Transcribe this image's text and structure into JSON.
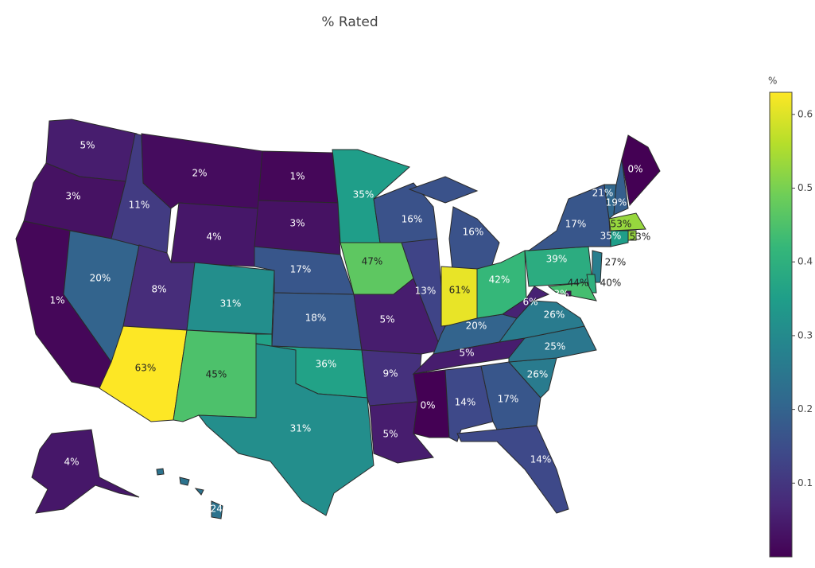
{
  "chart_data": {
    "type": "choropleth",
    "title": "% Rated",
    "colorscale": "Viridis",
    "colorbar_title": "%",
    "colorlim": [
      0,
      0.63
    ],
    "colorticks": [
      0.1,
      0.2,
      0.3,
      0.4,
      0.5,
      0.6
    ],
    "values": [
      0.05,
      0.03,
      0.01,
      0.2,
      0.11,
      0.02,
      0.04,
      0.08,
      0.63,
      0.31,
      0.45,
      0.01,
      0.03,
      0.17,
      0.18,
      0.36,
      0.31,
      0.35,
      0.47,
      0.05,
      0.09,
      0.05,
      0.16,
      0.13,
      0.0,
      0.16,
      0.61,
      0.2,
      0.05,
      0.14,
      0.42,
      0.17,
      0.14,
      0.26,
      0.25,
      0.26,
      0.06,
      0.39,
      0.17,
      0.21,
      0.19,
      0.0,
      0.53,
      0.53,
      0.35,
      0.27,
      0.4,
      0.44,
      0.03,
      0.04,
      0.24
    ],
    "value_labels": [
      "5%",
      "3%",
      "1%",
      "20%",
      "11%",
      "2%",
      "4%",
      "8%",
      "63%",
      "31%",
      "45%",
      "1%",
      "3%",
      "17%",
      "18%",
      "36%",
      "31%",
      "35%",
      "47%",
      "5%",
      "9%",
      "5%",
      "16%",
      "13%",
      "0%",
      "16%",
      "61%",
      "20%",
      "5%",
      "14%",
      "42%",
      "17%",
      "14%",
      "26%",
      "25%",
      "26%",
      "6%",
      "39%",
      "17%",
      "21%",
      "19%",
      "0%",
      "53%",
      "53%",
      "35%",
      "27%",
      "40%",
      "44%",
      "3%",
      "4%",
      "24%"
    ]
  }
}
